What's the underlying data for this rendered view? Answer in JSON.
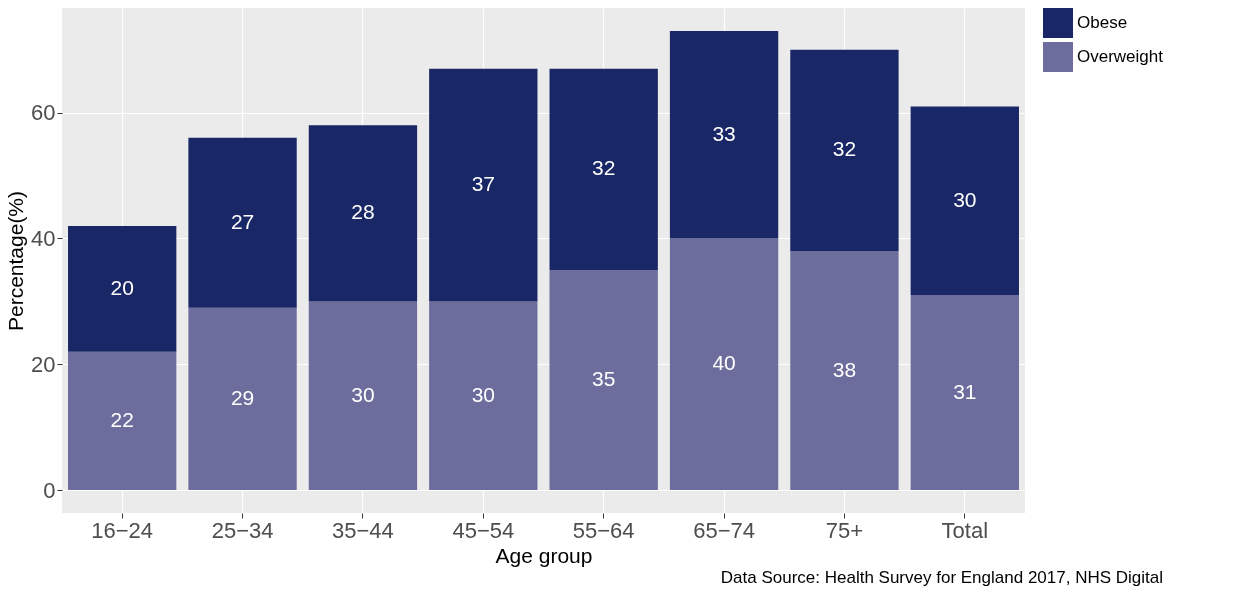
{
  "chart_data": {
    "type": "bar",
    "stacked": true,
    "xlabel": "Age group",
    "ylabel": "Percentage(%)",
    "categories": [
      "16−24",
      "25−34",
      "35−44",
      "45−54",
      "55−64",
      "65−74",
      "75+",
      "Total"
    ],
    "series": [
      {
        "name": "Overweight",
        "color": "#6c6d9c",
        "values": [
          22,
          29,
          30,
          30,
          35,
          40,
          38,
          31
        ]
      },
      {
        "name": "Obese",
        "color": "#1a2766",
        "values": [
          20,
          27,
          28,
          37,
          32,
          33,
          32,
          30
        ]
      }
    ],
    "ylim": [
      -3.65,
      76.65
    ],
    "yticks": [
      0,
      20,
      40,
      60
    ],
    "grid": true,
    "legend": "right",
    "data_labels": true,
    "annotations": [
      "Data Source: Health Survey for England 2017, NHS Digital"
    ]
  }
}
